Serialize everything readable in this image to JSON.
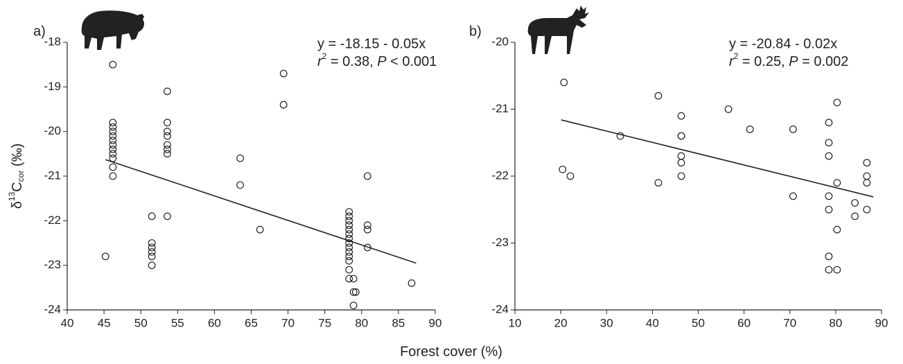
{
  "chart_data": [
    {
      "type": "scatter",
      "panel_label": "a)",
      "equation": "y = -18.15 - 0.05x",
      "stats": [
        "r",
        "2",
        " = 0.38, ",
        "P",
        " < 0.001"
      ],
      "y_label": [
        "δ",
        "13",
        "C",
        "cor",
        " (‰)"
      ],
      "xlim": [
        40,
        90
      ],
      "xticks": [
        40,
        45,
        50,
        55,
        60,
        65,
        70,
        75,
        80,
        85,
        90
      ],
      "ylim": [
        -24,
        -18
      ],
      "yticks": [
        -24,
        -23,
        -22,
        -21,
        -20,
        -19,
        -18
      ],
      "x": [
        45.2,
        46.2,
        46.2,
        46.2,
        46.2,
        46.2,
        46.2,
        46.2,
        46.2,
        46.2,
        46.2,
        46.2,
        46.2,
        51.5,
        51.5,
        51.5,
        51.5,
        51.5,
        51.5,
        53.6,
        53.6,
        53.6,
        53.6,
        53.6,
        53.6,
        53.6,
        53.6,
        63.5,
        63.5,
        66.2,
        69.4,
        69.4,
        78.3,
        78.3,
        78.3,
        78.3,
        78.3,
        78.3,
        78.3,
        78.3,
        78.3,
        78.3,
        78.3,
        78.3,
        78.3,
        78.3,
        78.9,
        78.9,
        78.9,
        79.2,
        80.8,
        80.8,
        80.8,
        80.8,
        86.8
      ],
      "y": [
        -22.8,
        -18.5,
        -19.8,
        -19.9,
        -20.0,
        -20.1,
        -20.2,
        -20.3,
        -20.4,
        -20.5,
        -20.6,
        -20.8,
        -21.0,
        -21.9,
        -22.5,
        -22.6,
        -22.7,
        -22.8,
        -23.0,
        -19.1,
        -19.8,
        -20.0,
        -20.1,
        -20.3,
        -20.4,
        -20.5,
        -21.9,
        -20.6,
        -21.2,
        -22.2,
        -18.7,
        -19.4,
        -21.8,
        -21.9,
        -22.0,
        -22.1,
        -22.2,
        -22.3,
        -22.4,
        -22.5,
        -22.6,
        -22.7,
        -22.8,
        -22.9,
        -23.1,
        -23.3,
        -23.3,
        -23.6,
        -23.9,
        -23.6,
        -21.0,
        -22.1,
        -22.2,
        -22.6,
        -23.4
      ],
      "fit_x": [
        45.2,
        87.4
      ],
      "fit_y": [
        -20.63,
        -22.95
      ]
    },
    {
      "type": "scatter",
      "panel_label": "b)",
      "equation": "y = -20.84 - 0.02x",
      "stats": [
        "r",
        "2",
        " = 0.25, ",
        "P",
        " = 0.002"
      ],
      "xlim": [
        10,
        90
      ],
      "xticks": [
        10,
        20,
        30,
        40,
        50,
        60,
        70,
        80,
        90
      ],
      "ylim": [
        -24,
        -20
      ],
      "yticks": [
        -24,
        -23,
        -22,
        -21,
        -20
      ],
      "x": [
        20.7,
        20.4,
        22.1,
        33.0,
        41.3,
        41.3,
        46.3,
        46.3,
        46.3,
        46.3,
        46.3,
        46.3,
        56.6,
        61.3,
        70.7,
        70.7,
        78.5,
        78.5,
        78.5,
        78.5,
        78.5,
        78.5,
        78.5,
        80.3,
        80.3,
        80.3,
        80.3,
        84.2,
        84.2,
        86.8,
        86.8,
        86.8,
        86.8
      ],
      "y": [
        -20.6,
        -21.9,
        -22.0,
        -21.4,
        -20.8,
        -22.1,
        -21.1,
        -21.4,
        -21.4,
        -21.7,
        -21.8,
        -22.0,
        -21.0,
        -21.3,
        -21.3,
        -22.3,
        -21.2,
        -21.5,
        -21.7,
        -22.3,
        -22.5,
        -23.2,
        -23.4,
        -20.9,
        -22.1,
        -22.8,
        -23.4,
        -22.4,
        -22.6,
        -21.8,
        -22.0,
        -22.1,
        -22.5
      ],
      "fit_x": [
        20.1,
        88.2
      ],
      "fit_y": [
        -21.16,
        -22.31
      ]
    }
  ],
  "x_label": "Forest cover (%)"
}
